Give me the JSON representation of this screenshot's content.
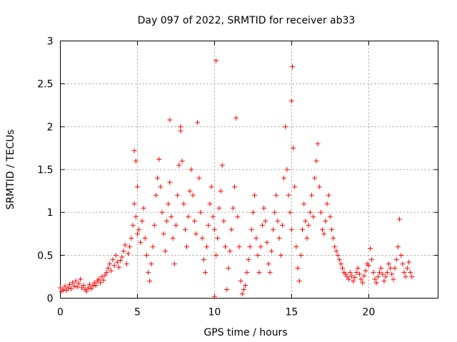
{
  "chart_data": {
    "type": "scatter",
    "title": "Day 097 of 2022, SRMTID for receiver ab33",
    "xlabel": "GPS time / hours",
    "ylabel": "SRMTID / TECUs",
    "xlim": [
      0,
      24.5
    ],
    "ylim": [
      0,
      3
    ],
    "x_ticks": [
      0,
      5,
      10,
      15,
      20
    ],
    "x_tick_labels": [
      "0",
      "5",
      "10",
      "15",
      "20"
    ],
    "y_ticks": [
      0,
      0.5,
      1,
      1.5,
      2,
      2.5,
      3
    ],
    "y_tick_labels": [
      "0",
      "0.5",
      "1",
      "1.5",
      "2",
      "2.5",
      "3"
    ],
    "grid": true,
    "marker": "+",
    "color": "#ff0000",
    "series": [
      {
        "name": "SRMTID",
        "points": [
          [
            0.0,
            0.12
          ],
          [
            0.1,
            0.08
          ],
          [
            0.2,
            0.1
          ],
          [
            0.3,
            0.14
          ],
          [
            0.4,
            0.09
          ],
          [
            0.5,
            0.12
          ],
          [
            0.6,
            0.16
          ],
          [
            0.7,
            0.11
          ],
          [
            0.8,
            0.18
          ],
          [
            0.9,
            0.14
          ],
          [
            1.0,
            0.2
          ],
          [
            1.1,
            0.13
          ],
          [
            1.2,
            0.17
          ],
          [
            1.3,
            0.22
          ],
          [
            1.4,
            0.12
          ],
          [
            1.5,
            0.15
          ],
          [
            1.6,
            0.1
          ],
          [
            1.7,
            0.08
          ],
          [
            1.8,
            0.12
          ],
          [
            1.9,
            0.16
          ],
          [
            2.0,
            0.11
          ],
          [
            2.1,
            0.14
          ],
          [
            2.2,
            0.18
          ],
          [
            2.3,
            0.15
          ],
          [
            2.4,
            0.2
          ],
          [
            2.5,
            0.22
          ],
          [
            2.6,
            0.18
          ],
          [
            2.7,
            0.25
          ],
          [
            2.8,
            0.21
          ],
          [
            2.9,
            0.27
          ],
          [
            3.0,
            0.3
          ],
          [
            3.1,
            0.35
          ],
          [
            3.2,
            0.4
          ],
          [
            3.3,
            0.32
          ],
          [
            3.4,
            0.45
          ],
          [
            3.5,
            0.38
          ],
          [
            3.6,
            0.5
          ],
          [
            3.7,
            0.42
          ],
          [
            3.8,
            0.36
          ],
          [
            3.9,
            0.44
          ],
          [
            4.0,
            0.48
          ],
          [
            4.1,
            0.55
          ],
          [
            4.2,
            0.62
          ],
          [
            4.3,
            0.4
          ],
          [
            4.4,
            0.52
          ],
          [
            4.5,
            0.6
          ],
          [
            4.6,
            0.7
          ],
          [
            4.7,
            0.85
          ],
          [
            4.8,
            1.1
          ],
          [
            4.9,
            0.95
          ],
          [
            5.0,
            0.75
          ],
          [
            5.0,
            1.3
          ],
          [
            4.9,
            1.6
          ],
          [
            4.8,
            1.72
          ],
          [
            5.1,
            0.8
          ],
          [
            5.2,
            0.65
          ],
          [
            5.3,
            0.9
          ],
          [
            5.4,
            1.05
          ],
          [
            5.5,
            0.7
          ],
          [
            5.6,
            0.5
          ],
          [
            5.7,
            0.3
          ],
          [
            5.8,
            0.2
          ],
          [
            5.9,
            0.4
          ],
          [
            6.0,
            0.6
          ],
          [
            6.1,
            0.85
          ],
          [
            6.2,
            1.2
          ],
          [
            6.3,
            1.4
          ],
          [
            6.4,
            1.62
          ],
          [
            6.5,
            1.3
          ],
          [
            6.6,
            1.0
          ],
          [
            6.7,
            0.75
          ],
          [
            6.8,
            0.55
          ],
          [
            6.9,
            0.9
          ],
          [
            7.0,
            1.1
          ],
          [
            7.1,
            1.35
          ],
          [
            7.1,
            2.08
          ],
          [
            7.2,
            0.95
          ],
          [
            7.3,
            0.7
          ],
          [
            7.4,
            0.4
          ],
          [
            7.5,
            0.85
          ],
          [
            7.6,
            1.2
          ],
          [
            7.7,
            1.55
          ],
          [
            7.8,
            1.95
          ],
          [
            7.8,
            2.0
          ],
          [
            7.9,
            1.6
          ],
          [
            8.0,
            1.1
          ],
          [
            8.1,
            0.8
          ],
          [
            8.2,
            0.6
          ],
          [
            8.3,
            0.95
          ],
          [
            8.4,
            1.25
          ],
          [
            8.5,
            1.5
          ],
          [
            8.6,
            1.2
          ],
          [
            8.7,
            0.9
          ],
          [
            8.8,
            0.75
          ],
          [
            8.9,
            2.05
          ],
          [
            9.0,
            1.4
          ],
          [
            9.1,
            1.0
          ],
          [
            9.2,
            0.7
          ],
          [
            9.3,
            0.45
          ],
          [
            9.4,
            0.3
          ],
          [
            9.5,
            0.6
          ],
          [
            9.6,
            0.85
          ],
          [
            9.7,
            1.1
          ],
          [
            9.8,
            1.3
          ],
          [
            9.9,
            0.95
          ],
          [
            10.0,
            0.8
          ],
          [
            10.0,
            0.02
          ],
          [
            10.1,
            0.5
          ],
          [
            10.1,
            2.77
          ],
          [
            10.2,
            0.7
          ],
          [
            10.3,
            1.05
          ],
          [
            10.4,
            1.25
          ],
          [
            10.5,
            1.55
          ],
          [
            10.6,
            0.9
          ],
          [
            10.7,
            0.6
          ],
          [
            10.8,
            0.1
          ],
          [
            10.9,
            0.35
          ],
          [
            11.0,
            0.55
          ],
          [
            11.1,
            0.8
          ],
          [
            11.2,
            1.05
          ],
          [
            11.3,
            1.3
          ],
          [
            11.4,
            2.1
          ],
          [
            11.5,
            0.95
          ],
          [
            11.6,
            0.6
          ],
          [
            11.7,
            0.2
          ],
          [
            11.8,
            0.05
          ],
          [
            11.9,
            0.1
          ],
          [
            12.0,
            0.15
          ],
          [
            12.1,
            0.3
          ],
          [
            12.2,
            0.45
          ],
          [
            12.3,
            0.6
          ],
          [
            12.4,
            0.8
          ],
          [
            12.5,
            1.0
          ],
          [
            12.6,
            1.2
          ],
          [
            12.7,
            0.7
          ],
          [
            12.8,
            0.5
          ],
          [
            12.9,
            0.3
          ],
          [
            13.0,
            0.6
          ],
          [
            13.1,
            0.85
          ],
          [
            13.2,
            1.05
          ],
          [
            13.3,
            0.9
          ],
          [
            13.4,
            0.65
          ],
          [
            13.5,
            0.4
          ],
          [
            13.6,
            0.3
          ],
          [
            13.7,
            0.55
          ],
          [
            13.8,
            0.8
          ],
          [
            13.9,
            1.0
          ],
          [
            14.0,
            1.2
          ],
          [
            14.1,
            0.9
          ],
          [
            14.2,
            0.7
          ],
          [
            14.3,
            0.5
          ],
          [
            14.4,
            0.85
          ],
          [
            14.5,
            1.4
          ],
          [
            14.6,
            2.0
          ],
          [
            14.7,
            1.5
          ],
          [
            14.8,
            1.2
          ],
          [
            14.9,
            1.0
          ],
          [
            15.0,
            0.8
          ],
          [
            15.0,
            2.3
          ],
          [
            15.05,
            2.7
          ],
          [
            15.1,
            1.75
          ],
          [
            15.2,
            1.3
          ],
          [
            15.3,
            0.6
          ],
          [
            15.4,
            0.35
          ],
          [
            15.5,
            0.2
          ],
          [
            15.6,
            0.5
          ],
          [
            15.7,
            0.8
          ],
          [
            15.8,
            1.1
          ],
          [
            15.9,
            0.9
          ],
          [
            16.0,
            0.7
          ],
          [
            16.1,
            0.85
          ],
          [
            16.2,
            1.0
          ],
          [
            16.3,
            1.2
          ],
          [
            16.4,
            0.95
          ],
          [
            16.5,
            1.4
          ],
          [
            16.6,
            1.6
          ],
          [
            16.7,
            1.8
          ],
          [
            16.8,
            1.3
          ],
          [
            16.9,
            1.0
          ],
          [
            17.0,
            0.8
          ],
          [
            17.1,
            0.75
          ],
          [
            17.2,
            0.9
          ],
          [
            17.3,
            1.1
          ],
          [
            17.4,
            1.2
          ],
          [
            17.5,
            0.95
          ],
          [
            17.6,
            0.8
          ],
          [
            17.7,
            0.7
          ],
          [
            17.8,
            0.6
          ],
          [
            17.9,
            0.55
          ],
          [
            18.0,
            0.5
          ],
          [
            18.1,
            0.45
          ],
          [
            18.2,
            0.4
          ],
          [
            18.3,
            0.35
          ],
          [
            18.4,
            0.3
          ],
          [
            18.5,
            0.28
          ],
          [
            18.6,
            0.25
          ],
          [
            18.7,
            0.22
          ],
          [
            18.8,
            0.3
          ],
          [
            18.9,
            0.26
          ],
          [
            19.0,
            0.2
          ],
          [
            19.1,
            0.24
          ],
          [
            19.2,
            0.3
          ],
          [
            19.3,
            0.35
          ],
          [
            19.4,
            0.28
          ],
          [
            19.5,
            0.22
          ],
          [
            19.6,
            0.18
          ],
          [
            19.7,
            0.26
          ],
          [
            19.8,
            0.32
          ],
          [
            19.9,
            0.4
          ],
          [
            20.0,
            0.38
          ],
          [
            20.1,
            0.58
          ],
          [
            20.2,
            0.45
          ],
          [
            20.3,
            0.3
          ],
          [
            20.4,
            0.22
          ],
          [
            20.5,
            0.18
          ],
          [
            20.6,
            0.25
          ],
          [
            20.7,
            0.3
          ],
          [
            20.8,
            0.35
          ],
          [
            20.9,
            0.28
          ],
          [
            21.0,
            0.2
          ],
          [
            21.1,
            0.25
          ],
          [
            21.2,
            0.3
          ],
          [
            21.3,
            0.4
          ],
          [
            21.4,
            0.35
          ],
          [
            21.5,
            0.28
          ],
          [
            21.6,
            0.22
          ],
          [
            21.7,
            0.35
          ],
          [
            21.8,
            0.45
          ],
          [
            21.9,
            0.6
          ],
          [
            22.0,
            0.92
          ],
          [
            22.1,
            0.5
          ],
          [
            22.2,
            0.4
          ],
          [
            22.3,
            0.3
          ],
          [
            22.4,
            0.25
          ],
          [
            22.5,
            0.35
          ],
          [
            22.6,
            0.42
          ],
          [
            22.7,
            0.3
          ],
          [
            22.8,
            0.25
          ]
        ]
      }
    ]
  }
}
